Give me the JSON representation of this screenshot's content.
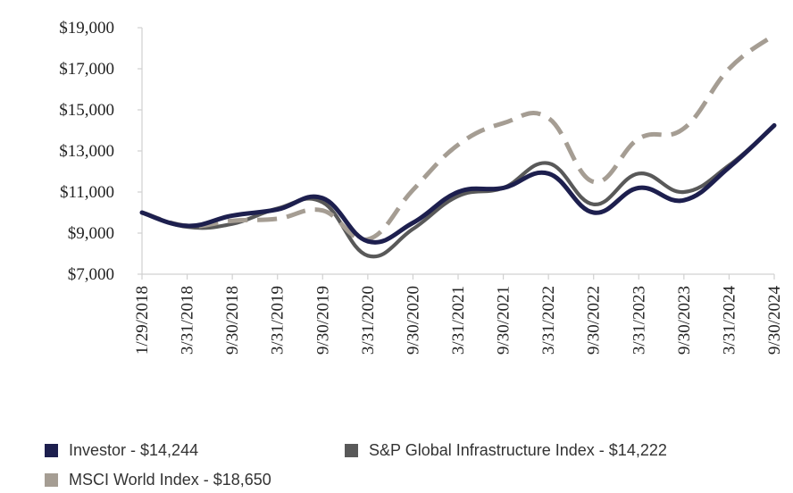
{
  "chart_data": {
    "type": "line",
    "title": "",
    "xlabel": "",
    "ylabel": "",
    "ylim": [
      7000,
      19000
    ],
    "yticks": [
      "$7,000",
      "$9,000",
      "$11,000",
      "$13,000",
      "$15,000",
      "$17,000",
      "$19,000"
    ],
    "ytick_values": [
      7000,
      9000,
      11000,
      13000,
      15000,
      17000,
      19000
    ],
    "categories": [
      "1/29/2018",
      "3/31/2018",
      "9/30/2018",
      "3/31/2019",
      "9/30/2019",
      "3/31/2020",
      "9/30/2020",
      "3/31/2021",
      "9/30/2021",
      "3/31/2022",
      "9/30/2022",
      "3/31/2023",
      "9/30/2023",
      "3/31/2024",
      "9/30/2024"
    ],
    "series": [
      {
        "name": "S&P Global Infrastructure Index",
        "legend": "S&P Global Infrastructure Index - $14,222",
        "color": "#595959",
        "style": "solid",
        "values": [
          10000,
          9300,
          9450,
          10200,
          10500,
          7900,
          9200,
          10800,
          11200,
          12400,
          10400,
          11900,
          11000,
          12300,
          14222
        ]
      },
      {
        "name": "MSCI World Index",
        "legend": "MSCI World Index - $18,650",
        "color": "#a59d93",
        "style": "dashed",
        "values": [
          10000,
          9350,
          9600,
          9700,
          10100,
          8700,
          11100,
          13300,
          14350,
          14600,
          11500,
          13600,
          14100,
          17000,
          18650
        ]
      },
      {
        "name": "Investor",
        "legend": "Investor - $14,244",
        "color": "#1d1f4e",
        "style": "solid",
        "values": [
          10000,
          9350,
          9850,
          10150,
          10700,
          8600,
          9500,
          11000,
          11200,
          11900,
          10000,
          11200,
          10600,
          12200,
          14244
        ]
      }
    ],
    "legend_position": "bottom"
  }
}
